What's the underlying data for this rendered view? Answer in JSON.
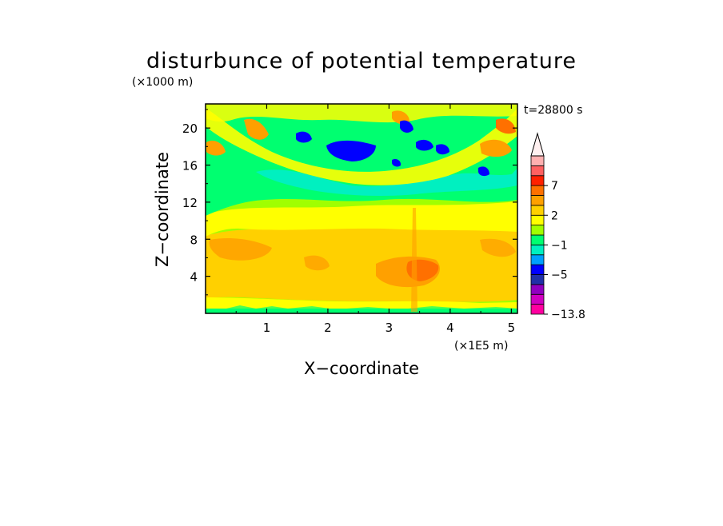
{
  "chart_data": {
    "type": "heatmap",
    "title": "disturbunce of potential temperature",
    "time_label": "t=28800 s",
    "xlabel": "X−coordinate",
    "ylabel": "Z−coordinate",
    "x_unit": "(×1E5 m)",
    "y_unit": "(×1000 m)",
    "xlim": [
      0,
      5.1
    ],
    "ylim": [
      0,
      22.6
    ],
    "xticks": [
      {
        "value": 1,
        "label": "1"
      },
      {
        "value": 2,
        "label": "2"
      },
      {
        "value": 3,
        "label": "3"
      },
      {
        "value": 4,
        "label": "4"
      },
      {
        "value": 5,
        "label": "5"
      }
    ],
    "yticks": [
      {
        "value": 4,
        "label": "4"
      },
      {
        "value": 8,
        "label": "8"
      },
      {
        "value": 12,
        "label": "12"
      },
      {
        "value": 16,
        "label": "16"
      },
      {
        "value": 20,
        "label": "20"
      }
    ],
    "colorbar": {
      "min_label": "−13.8",
      "labels": [
        {
          "value": 7,
          "label": "7"
        },
        {
          "value": 2,
          "label": "2"
        },
        {
          "value": -1,
          "label": "−1"
        },
        {
          "value": -5,
          "label": "−5"
        },
        {
          "value": -13.8,
          "label": "−13.8"
        }
      ],
      "levels": [
        {
          "color": "#ff00a0"
        },
        {
          "color": "#d000c0"
        },
        {
          "color": "#9000c0"
        },
        {
          "color": "#2030a8"
        },
        {
          "color": "#0000ff"
        },
        {
          "color": "#00a0ff"
        },
        {
          "color": "#00f0c0"
        },
        {
          "color": "#00ff70"
        },
        {
          "color": "#a0ff00"
        },
        {
          "color": "#ffff00"
        },
        {
          "color": "#ffd000"
        },
        {
          "color": "#ffa000"
        },
        {
          "color": "#ff7000"
        },
        {
          "color": "#ff2000"
        },
        {
          "color": "#ff6060"
        },
        {
          "color": "#ffb0b0"
        }
      ]
    },
    "field_description_bands": [
      {
        "z": [
          0,
          0.6
        ],
        "level": "green"
      },
      {
        "z": [
          0.6,
          2
        ],
        "level": "yellow"
      },
      {
        "z": [
          2,
          9
        ],
        "level": "orange"
      },
      {
        "z": [
          9,
          12
        ],
        "level": "yellow"
      },
      {
        "z": [
          12,
          16
        ],
        "level": "green"
      },
      {
        "z": [
          16,
          22.6
        ],
        "level": "mixed"
      }
    ]
  }
}
